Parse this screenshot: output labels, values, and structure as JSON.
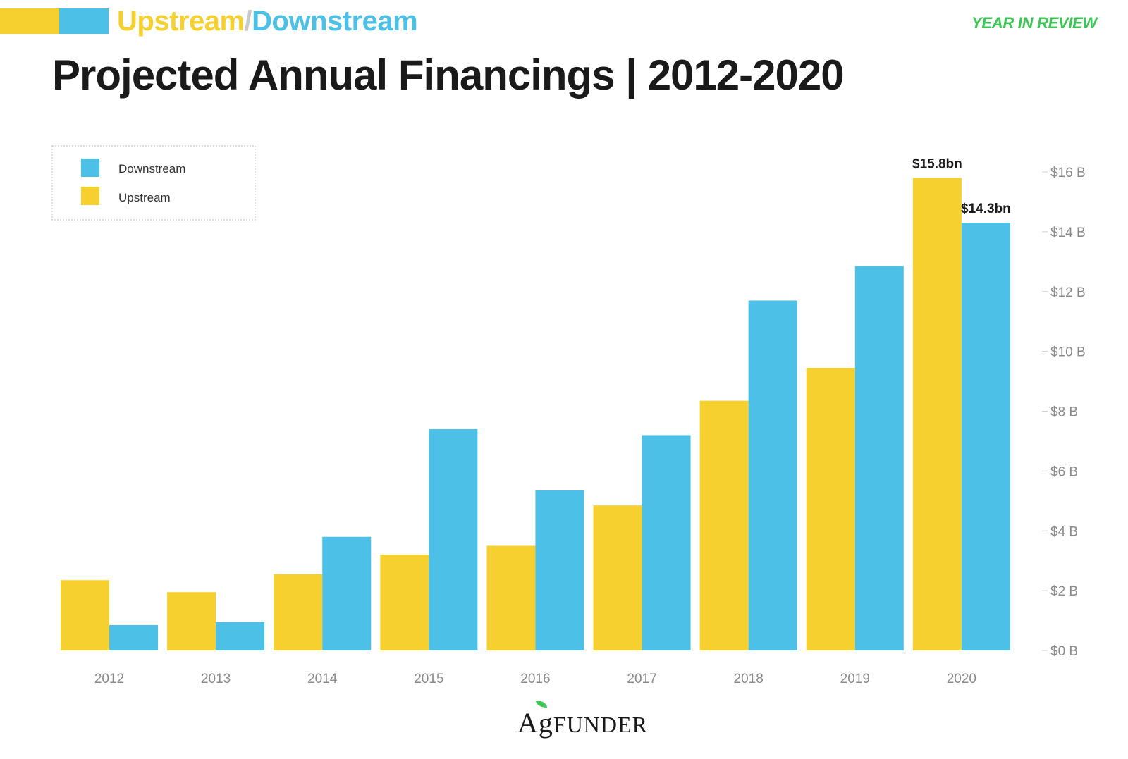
{
  "header": {
    "section_upstream": "Upstream",
    "section_separator": "/",
    "section_downstream": "Downstream",
    "tag": "YEAR IN REVIEW",
    "brand_colors": {
      "upstream": "#f6d02f",
      "downstream": "#4cc0e6",
      "tag": "#3cc653"
    }
  },
  "chart_data": {
    "type": "bar",
    "title": "Projected Annual Financings | 2012-2020",
    "categories": [
      "2012",
      "2013",
      "2014",
      "2015",
      "2016",
      "2017",
      "2018",
      "2019",
      "2020"
    ],
    "series": [
      {
        "name": "Upstream",
        "color": "#f6d02f",
        "values": [
          2.35,
          1.95,
          2.55,
          3.2,
          3.5,
          4.85,
          8.35,
          9.45,
          15.8
        ]
      },
      {
        "name": "Downstream",
        "color": "#4cc0e6",
        "values": [
          0.85,
          0.95,
          3.8,
          7.4,
          5.35,
          7.2,
          11.7,
          12.85,
          14.3
        ]
      }
    ],
    "legend": [
      {
        "name": "Downstream",
        "color": "#4cc0e6"
      },
      {
        "name": "Upstream",
        "color": "#f6d02f"
      }
    ],
    "legend_position": "top-left",
    "y_axis": {
      "position": "right",
      "min": 0,
      "max": 16,
      "step": 2,
      "tick_labels": [
        "$0 B",
        "$2 B",
        "$4 B",
        "$6 B",
        "$8 B",
        "$10 B",
        "$12 B",
        "$14 B",
        "$16 B"
      ]
    },
    "annotations": [
      {
        "category": "2020",
        "series": "Upstream",
        "text": "$15.8bn"
      },
      {
        "category": "2020",
        "series": "Downstream",
        "text": "$14.3bn"
      }
    ],
    "grid": false,
    "xlabel": "",
    "ylabel": ""
  },
  "footer": {
    "logo_ag": "Ag",
    "logo_rest": "FUNDER"
  }
}
